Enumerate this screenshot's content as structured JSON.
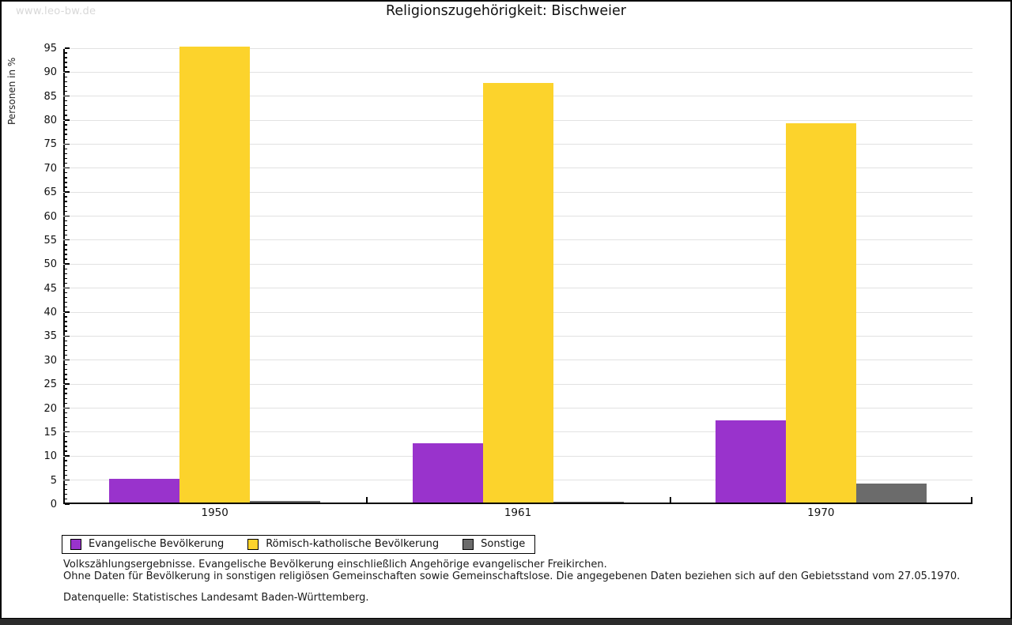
{
  "page": {
    "watermark": "www.leo-bw.de"
  },
  "chart_data": {
    "type": "bar",
    "title": "Religionszugehörigkeit: Bischweier",
    "ylabel": "Personen in %",
    "xlabel": "",
    "categories": [
      "1950",
      "1961",
      "1970"
    ],
    "series": [
      {
        "name": "Evangelische Bevölkerung",
        "color": "#9933cc",
        "values": [
          4.9,
          12.4,
          17.2
        ]
      },
      {
        "name": "Römisch-katholische Bevölkerung",
        "color": "#fcd32c",
        "values": [
          95.0,
          87.5,
          79.0
        ]
      },
      {
        "name": "Sonstige",
        "color": "#6b6b6b",
        "values": [
          0.4,
          0.1,
          3.9
        ]
      }
    ],
    "ylim": [
      0,
      95
    ],
    "ytick_major_step": 5,
    "ytick_minor_step": 1,
    "grid": true,
    "gridline_color": "#e2e2e2",
    "legend_position": "bottom-left"
  },
  "footnotes": {
    "line1": "Volkszählungsergebnisse. Evangelische Bevölkerung einschließlich Angehörige evangelischer Freikirchen.",
    "line2": "Ohne Daten für Bevölkerung in sonstigen religiösen Gemeinschaften sowie Gemeinschaftslose. Die angegebenen Daten beziehen sich auf den Gebietsstand vom 27.05.1970.",
    "source": "Datenquelle: Statistisches Landesamt Baden-Württemberg."
  }
}
